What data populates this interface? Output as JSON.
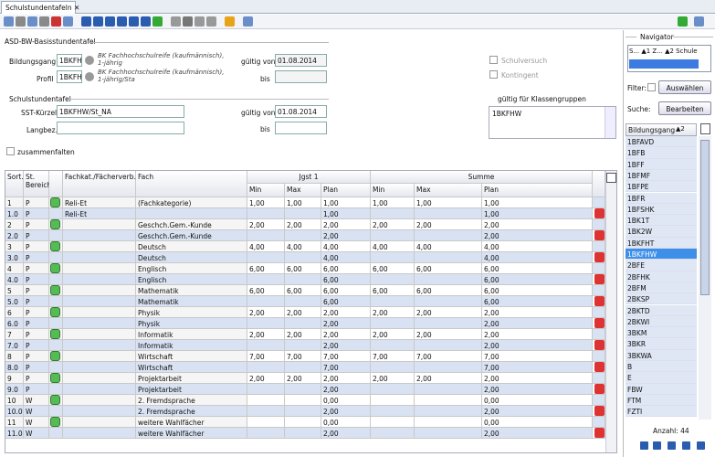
{
  "tab": {
    "title": "Schulstundentafeln"
  },
  "basis": {
    "title": "ASD-BW-Basisstundentafel",
    "bildungsgang_label": "Bildungsgang",
    "bildungsgang_code": "1BKFH'",
    "bildungsgang_desc": "BK Fachhochschulreife (kaufmännisch), 1-jährig",
    "profil_label": "Profil",
    "profil_code": "1BKFH'",
    "profil_desc": "BK Fachhochschulreife (kaufmännisch), 1-jährig/Sta",
    "gueltig_von_label": "gültig von",
    "gueltig_von": "01.08.2014",
    "bis_label": "bis",
    "schulversuch": "Schulversuch",
    "kontingent": "Kontingent"
  },
  "sst": {
    "title": "Schulstundentafel",
    "kuerzel_label": "SST-Kürzel",
    "kuerzel": "1BKFHW/St_NA",
    "langbez_label": "Langbez.",
    "gueltig_von_label": "gültig von",
    "gueltig_von": "01.08.2014",
    "bis_label": "bis",
    "klassengruppen_label": "gültig für Klassengruppen",
    "klassengruppen": [
      "1BKFHW"
    ],
    "zusammenfalten": "zusammenfalten"
  },
  "table": {
    "headers": {
      "sort": "Sort.",
      "bereich": "St. Bereich",
      "fachkat": "Fachkat./Fächerverb.",
      "fach": "Fach",
      "jgst": "Jgst 1",
      "summe": "Summe",
      "sub": [
        "Min",
        "Max",
        "Plan",
        "Min",
        "Max",
        "Plan"
      ]
    },
    "rows": [
      [
        "1",
        "P",
        "Reli-Et",
        "(Fachkategorie)",
        "1,00",
        "1,00",
        "1,00",
        "1,00",
        "1,00",
        "1,00"
      ],
      [
        "1.0",
        "P",
        "Reli-Et",
        null,
        null,
        null,
        "1,00",
        null,
        null,
        "1,00"
      ],
      [
        "2",
        "P",
        null,
        "Geschch.Gem.-Kunde",
        "2,00",
        "2,00",
        "2,00",
        "2,00",
        "2,00",
        "2,00"
      ],
      [
        "2.0",
        "P",
        null,
        "Geschch.Gem.-Kunde",
        null,
        null,
        "2,00",
        null,
        null,
        "2,00"
      ],
      [
        "3",
        "P",
        null,
        "Deutsch",
        "4,00",
        "4,00",
        "4,00",
        "4,00",
        "4,00",
        "4,00"
      ],
      [
        "3.0",
        "P",
        null,
        "Deutsch",
        null,
        null,
        "4,00",
        null,
        null,
        "4,00"
      ],
      [
        "4",
        "P",
        null,
        "Englisch",
        "6,00",
        "6,00",
        "6,00",
        "6,00",
        "6,00",
        "6,00"
      ],
      [
        "4.0",
        "P",
        null,
        "Englisch",
        null,
        null,
        "6,00",
        null,
        null,
        "6,00"
      ],
      [
        "5",
        "P",
        null,
        "Mathematik",
        "6,00",
        "6,00",
        "6,00",
        "6,00",
        "6,00",
        "6,00"
      ],
      [
        "5.0",
        "P",
        null,
        "Mathematik",
        null,
        null,
        "6,00",
        null,
        null,
        "6,00"
      ],
      [
        "6",
        "P",
        null,
        "Physik",
        "2,00",
        "2,00",
        "2,00",
        "2,00",
        "2,00",
        "2,00"
      ],
      [
        "6.0",
        "P",
        null,
        "Physik",
        null,
        null,
        "2,00",
        null,
        null,
        "2,00"
      ],
      [
        "7",
        "P",
        null,
        "Informatik",
        "2,00",
        "2,00",
        "2,00",
        "2,00",
        "2,00",
        "2,00"
      ],
      [
        "7.0",
        "P",
        null,
        "Informatik",
        null,
        null,
        "2,00",
        null,
        null,
        "2,00"
      ],
      [
        "8",
        "P",
        null,
        "Wirtschaft",
        "7,00",
        "7,00",
        "7,00",
        "7,00",
        "7,00",
        "7,00"
      ],
      [
        "8.0",
        "P",
        null,
        "Wirtschaft",
        null,
        null,
        "7,00",
        null,
        null,
        "7,00"
      ],
      [
        "9",
        "P",
        null,
        "Projektarbeit",
        "2,00",
        "2,00",
        "2,00",
        "2,00",
        "2,00",
        "2,00"
      ],
      [
        "9.0",
        "P",
        null,
        "Projektarbeit",
        null,
        null,
        "2,00",
        null,
        null,
        "2,00"
      ],
      [
        "10",
        "W",
        null,
        "2. Fremdsprache",
        null,
        null,
        "0,00",
        null,
        null,
        "0,00"
      ],
      [
        "10.0",
        "W",
        null,
        "2. Fremdsprache",
        null,
        null,
        "2,00",
        null,
        null,
        "2,00"
      ],
      [
        "11",
        "W",
        null,
        "weitere Wahlfächer",
        null,
        null,
        "0,00",
        null,
        null,
        "0,00"
      ],
      [
        "11.0",
        "W",
        null,
        "weitere Wahlfächer",
        null,
        null,
        "2,00",
        null,
        null,
        "2,00"
      ]
    ]
  },
  "navigator": {
    "title": "Navigator",
    "sort": "S... ▲1 Z... ▲2 Schule",
    "filter_label": "Filter:",
    "auswaehlen": "Auswählen",
    "suche_label": "Suche:",
    "bearbeiten": "Bearbeiten",
    "column": "Bildungsgang",
    "column_sort": "▲2",
    "items": [
      "1BFAVD",
      "1BFB",
      "1BFF",
      "1BFMF",
      "1BFPE",
      "1BFR",
      "1BFSHK",
      "1BK1T",
      "1BK2W",
      "1BKFHT",
      "1BKFHW",
      "2BFE",
      "2BFHK",
      "2BFM",
      "2BKSP",
      "2BKTD",
      "2BKWI",
      "3BKM",
      "3BKR",
      "3BKWA",
      "B",
      "E",
      "FBW",
      "FTM",
      "FZTI"
    ],
    "selected": "1BKFHW",
    "count": "Anzahl: 44"
  }
}
